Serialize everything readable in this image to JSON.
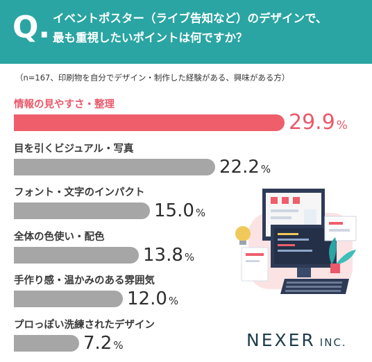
{
  "question": {
    "mark": "Q.",
    "line1": "イベントポスター（ライブ告知など）のデザインで、",
    "line2": "最も重視したいポイントは何ですか？"
  },
  "note": "（n=167、印刷物を自分でデザイン・制作した経験がある、興味がある方）",
  "chart_data": {
    "type": "bar",
    "orientation": "horizontal",
    "categories": [
      "情報の見やすさ・整理",
      "目を引くビジュアル・写真",
      "フォント・文字のインパクト",
      "全体の色使い・配色",
      "手作り感・温かみのある雰囲気",
      "プロっぽい洗練されたデザイン"
    ],
    "values": [
      29.9,
      22.2,
      15.0,
      13.8,
      12.0,
      7.2
    ],
    "value_labels": [
      "29.9",
      "22.2",
      "15.0",
      "13.8",
      "12.0",
      "7.2"
    ],
    "unit": "%",
    "highlight_index": 0,
    "colors": {
      "highlight": "#ee5f6b",
      "default": "#a6a6a6",
      "header": "#2aa5a3"
    }
  },
  "logo": {
    "main": "NEXER",
    "suffix": "INC."
  }
}
